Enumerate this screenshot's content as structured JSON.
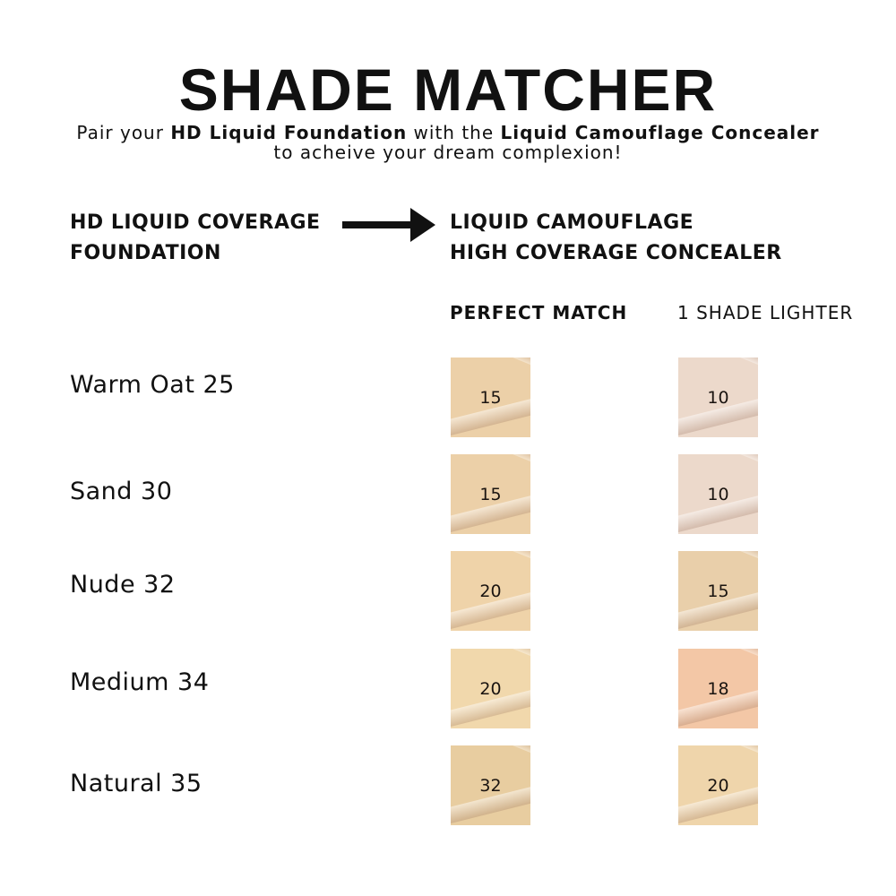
{
  "title": "SHADE MATCHER",
  "subtitle": {
    "pre": "Pair your ",
    "product1": "HD Liquid Foundation",
    "mid": " with the ",
    "product2": "Liquid Camouflage Concealer",
    "line2": "to acheive your dream complexion!"
  },
  "left_header": [
    "HD LIQUID COVERAGE",
    "FOUNDATION"
  ],
  "right_header": [
    "LIQUID CAMOUFLAGE",
    "HIGH COVERAGE CONCEALER"
  ],
  "arrow_icon": "arrow-right-icon",
  "columns": [
    "PERFECT MATCH",
    "1 SHADE LIGHTER"
  ],
  "rows": [
    {
      "foundation": "Warm Oat 25",
      "perfect": "15",
      "perfect_color": "#ecd0a8",
      "lighter": "10",
      "lighter_color": "#ecd9cb"
    },
    {
      "foundation": "Sand 30",
      "perfect": "15",
      "perfect_color": "#ecd0a8",
      "lighter": "10",
      "lighter_color": "#ecd9cb"
    },
    {
      "foundation": "Nude 32",
      "perfect": "20",
      "perfect_color": "#efd3a9",
      "lighter": "15",
      "lighter_color": "#e9cfaa"
    },
    {
      "foundation": "Medium 34",
      "perfect": "20",
      "perfect_color": "#f1d8ac",
      "lighter": "18",
      "lighter_color": "#f3c7a6"
    },
    {
      "foundation": "Natural 35",
      "perfect": "32",
      "perfect_color": "#e8cda0",
      "lighter": "20",
      "lighter_color": "#efd5ab"
    }
  ]
}
